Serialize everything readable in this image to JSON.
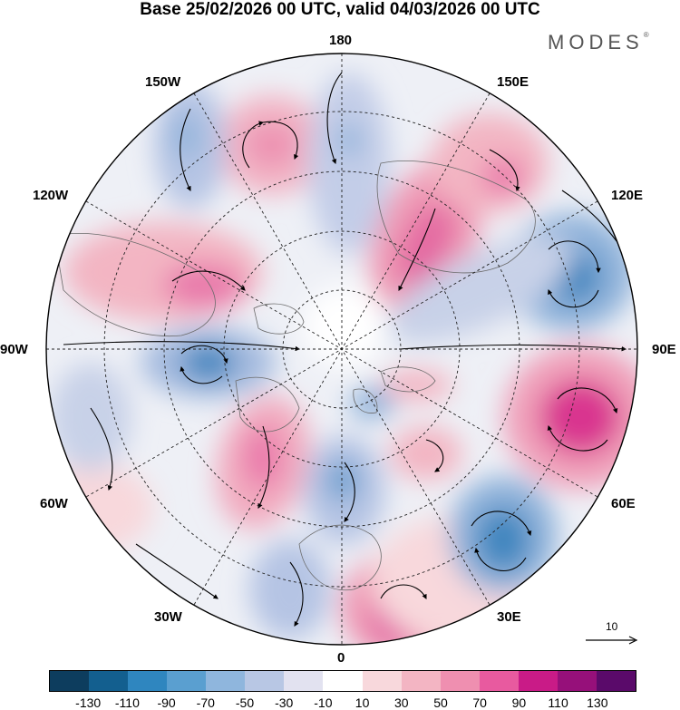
{
  "title": "Base 25/02/2026 00 UTC, valid 04/03/2026 00 UTC",
  "brand": "MODES",
  "brand_mark": "®",
  "longitude_labels": {
    "top": "180",
    "top_right": "150E",
    "right_upper": "120E",
    "right": "90E",
    "right_lower": "60E",
    "bottom_right": "30E",
    "bottom": "0",
    "bottom_left": "30W",
    "left_lower": "60W",
    "left": "90W",
    "left_upper": "120W",
    "top_left": "150W"
  },
  "reference_vector": {
    "value": "10"
  },
  "colorbar": {
    "colors": [
      "#0d3d5e",
      "#135f8f",
      "#2f86bf",
      "#5a9fd0",
      "#8fb6dd",
      "#b8c7e4",
      "#e2e2f0",
      "#ffffff",
      "#f8d8dc",
      "#f3b5c3",
      "#ef8fb0",
      "#e85a9f",
      "#c91b87",
      "#96107a",
      "#5a0a6a"
    ],
    "ticks": [
      "-130",
      "-110",
      "-90",
      "-70",
      "-50",
      "-30",
      "-10",
      "10",
      "30",
      "50",
      "70",
      "90",
      "110",
      "130"
    ]
  },
  "colors": {
    "negative_strong": "#3f86bf",
    "negative_mid": "#8fb2da",
    "negative_weak": "#c8d1e8",
    "positive_weak": "#f6d2d8",
    "positive_mid": "#ef9bb6",
    "positive_strong": "#e2559c"
  }
}
